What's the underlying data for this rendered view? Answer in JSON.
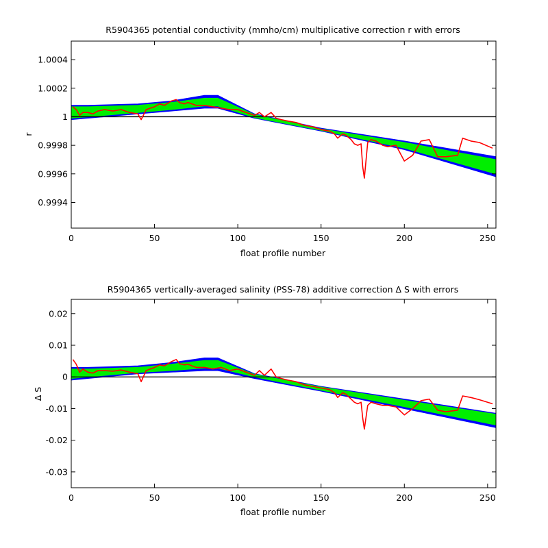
{
  "chart_data": [
    {
      "type": "line",
      "title": "R5904365 potential conductivity (mmho/cm) multiplicative correction r with errors",
      "xlabel": "float profile number",
      "ylabel": "r",
      "xlim": [
        0,
        255
      ],
      "ylim": [
        0.99922,
        1.00053
      ],
      "xticks": [
        0,
        50,
        100,
        150,
        200,
        250
      ],
      "yticks": [
        0.9994,
        0.9996,
        0.9998,
        1,
        1.0002,
        1.0004
      ],
      "ytick_labels": [
        "0.9994",
        "0.9996",
        "0.9998",
        "1",
        "1.0002",
        "1.0004"
      ],
      "reference_line": 1,
      "grid": false,
      "series": [
        {
          "role": "error_band_outer",
          "color": "#0000ff",
          "x": [
            0,
            10,
            40,
            60,
            80,
            88,
            110,
            150,
            200,
            255
          ],
          "upper": [
            1.00008,
            1.00008,
            1.00009,
            1.00011,
            1.00015,
            1.00015,
            1.00002,
            0.99992,
            0.99983,
            0.99972
          ],
          "lower": [
            0.99998,
            0.99999,
            1.00002,
            1.00004,
            1.00006,
            1.00006,
            0.99999,
            0.9999,
            0.99977,
            0.99958
          ]
        },
        {
          "role": "error_band_inner",
          "color": "#00ee00",
          "x": [
            0,
            10,
            40,
            60,
            80,
            88,
            110,
            150,
            200,
            255
          ],
          "upper": [
            1.00007,
            1.00007,
            1.00008,
            1.0001,
            1.00013,
            1.00013,
            1.000015,
            0.999915,
            0.99982,
            0.9997
          ],
          "lower": [
            0.99999,
            1.0,
            1.00003,
            1.00005,
            1.000075,
            1.000075,
            0.999995,
            0.999905,
            0.99978,
            0.9996
          ]
        },
        {
          "role": "fit",
          "color": "#ff0000",
          "x": [
            1,
            3,
            5,
            7,
            10,
            13,
            16,
            20,
            25,
            30,
            35,
            40,
            42,
            45,
            50,
            53,
            56,
            60,
            63,
            65,
            68,
            70,
            75,
            80,
            85,
            90,
            95,
            100,
            105,
            110,
            113,
            116,
            120,
            123,
            126,
            130,
            135,
            140,
            145,
            150,
            155,
            158,
            160,
            163,
            165,
            168,
            170,
            172,
            174,
            175,
            176,
            178,
            180,
            183,
            187,
            190,
            195,
            200,
            205,
            210,
            215,
            220,
            225,
            232,
            235,
            240,
            245,
            253
          ],
          "y": [
            1.00007,
            1.00005,
            1.00001,
            1.00003,
            1.00003,
            1.00002,
            1.00004,
            1.00005,
            1.00004,
            1.00005,
            1.00003,
            1.00002,
            0.99998,
            1.00005,
            1.00007,
            1.00009,
            1.00008,
            1.00011,
            1.00012,
            1.0001,
            1.00009,
            1.0001,
            1.00008,
            1.00008,
            1.00007,
            1.00006,
            1.00005,
            1.00005,
            1.00003,
            1.00001,
            1.00003,
            1.0,
            1.00003,
            0.99999,
            0.99998,
            0.99997,
            0.99996,
            0.99994,
            0.99993,
            0.99991,
            0.9999,
            0.99988,
            0.99985,
            0.99988,
            0.99987,
            0.99984,
            0.99981,
            0.9998,
            0.99981,
            0.99965,
            0.99957,
            0.99982,
            0.99984,
            0.99983,
            0.9998,
            0.99979,
            0.9998,
            0.99969,
            0.99973,
            0.99983,
            0.99984,
            0.99972,
            0.99972,
            0.99973,
            0.99985,
            0.99983,
            0.99982,
            0.99978
          ]
        }
      ]
    },
    {
      "type": "line",
      "title": "R5904365 vertically-averaged salinity (PSS-78) additive correction Δ S with errors",
      "xlabel": "float profile number",
      "ylabel": "Δ S",
      "xlim": [
        0,
        255
      ],
      "ylim": [
        -0.035,
        0.0245
      ],
      "xticks": [
        0,
        50,
        100,
        150,
        200,
        250
      ],
      "yticks": [
        -0.03,
        -0.02,
        -0.01,
        0,
        0.01,
        0.02
      ],
      "ytick_labels": [
        "-0.03",
        "-0.02",
        "-0.01",
        "0",
        "0.01",
        "0.02"
      ],
      "reference_line": 0,
      "grid": false,
      "series": [
        {
          "role": "error_band_outer",
          "color": "#0000ff",
          "x": [
            0,
            10,
            40,
            60,
            80,
            88,
            110,
            150,
            200,
            255
          ],
          "upper": [
            0.003,
            0.003,
            0.0035,
            0.0045,
            0.006,
            0.006,
            0.001,
            -0.003,
            -0.007,
            -0.0115
          ],
          "lower": [
            -0.001,
            -0.0005,
            0.001,
            0.0015,
            0.002,
            0.002,
            -0.0005,
            -0.0045,
            -0.01,
            -0.016
          ]
        },
        {
          "role": "error_band_inner",
          "color": "#00ee00",
          "x": [
            0,
            10,
            40,
            60,
            80,
            88,
            110,
            150,
            200,
            255
          ],
          "upper": [
            0.0025,
            0.0025,
            0.003,
            0.004,
            0.0052,
            0.0052,
            0.0008,
            -0.0032,
            -0.0074,
            -0.0118
          ],
          "lower": [
            -0.0005,
            0.0,
            0.0014,
            0.002,
            0.0028,
            0.0028,
            0.0,
            -0.0042,
            -0.0094,
            -0.0152
          ]
        },
        {
          "role": "fit",
          "color": "#ff0000",
          "x": [
            1,
            3,
            5,
            7,
            10,
            13,
            16,
            20,
            25,
            30,
            35,
            40,
            42,
            45,
            50,
            53,
            56,
            60,
            63,
            65,
            68,
            70,
            75,
            80,
            85,
            90,
            95,
            100,
            105,
            110,
            113,
            116,
            120,
            123,
            126,
            130,
            135,
            140,
            145,
            150,
            155,
            158,
            160,
            163,
            165,
            168,
            170,
            172,
            174,
            175,
            176,
            178,
            180,
            183,
            187,
            190,
            195,
            200,
            205,
            210,
            215,
            220,
            225,
            232,
            235,
            240,
            245,
            253
          ],
          "y": [
            0.0055,
            0.004,
            0.0015,
            0.0025,
            0.0015,
            0.0012,
            0.002,
            0.002,
            0.0018,
            0.0022,
            0.0015,
            0.001,
            -0.0015,
            0.002,
            0.003,
            0.0038,
            0.0035,
            0.0048,
            0.0055,
            0.0042,
            0.0038,
            0.004,
            0.003,
            0.003,
            0.0025,
            0.003,
            0.002,
            0.0025,
            0.0015,
            0.0005,
            0.002,
            0.0005,
            0.0025,
            0.0,
            -0.0005,
            -0.001,
            -0.0015,
            -0.0025,
            -0.003,
            -0.0035,
            -0.004,
            -0.005,
            -0.0065,
            -0.005,
            -0.0055,
            -0.007,
            -0.008,
            -0.0085,
            -0.008,
            -0.013,
            -0.0165,
            -0.009,
            -0.008,
            -0.0085,
            -0.009,
            -0.009,
            -0.0095,
            -0.012,
            -0.01,
            -0.0075,
            -0.007,
            -0.0105,
            -0.011,
            -0.0105,
            -0.006,
            -0.0065,
            -0.0072,
            -0.0085
          ]
        }
      ]
    }
  ]
}
